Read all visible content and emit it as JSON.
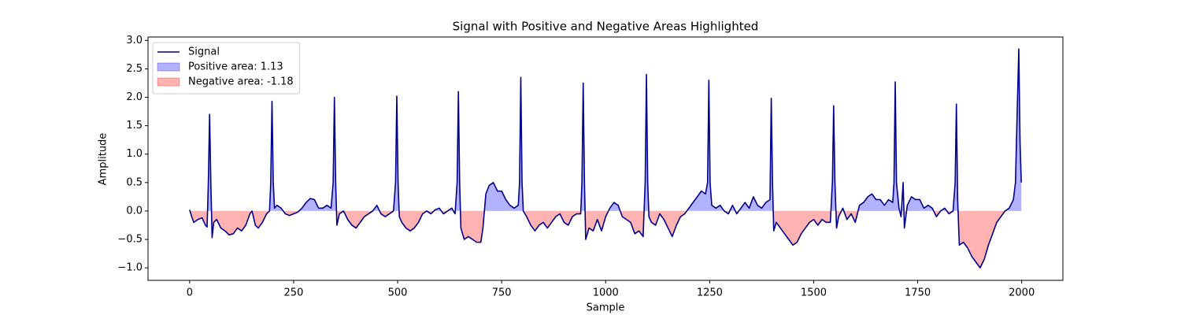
{
  "chart_data": {
    "type": "line",
    "title": "Signal with Positive and Negative Areas Highlighted",
    "x_label": "Sample",
    "y_label": "Amplitude",
    "x": [
      0,
      5,
      10,
      20,
      30,
      38,
      42,
      45,
      48,
      51,
      54,
      58,
      65,
      75,
      85,
      95,
      105,
      115,
      125,
      135,
      145,
      150,
      158,
      165,
      175,
      185,
      192,
      195,
      198,
      201,
      204,
      210,
      220,
      230,
      240,
      250,
      260,
      270,
      280,
      290,
      300,
      310,
      320,
      330,
      340,
      345,
      348,
      351,
      354,
      360,
      370,
      380,
      390,
      400,
      410,
      420,
      430,
      440,
      450,
      460,
      470,
      480,
      490,
      495,
      498,
      501,
      504,
      510,
      520,
      530,
      540,
      550,
      560,
      570,
      580,
      590,
      600,
      610,
      620,
      630,
      638,
      643,
      646,
      649,
      652,
      660,
      670,
      680,
      690,
      700,
      705,
      712,
      720,
      730,
      740,
      750,
      760,
      770,
      780,
      790,
      793,
      796,
      799,
      802,
      810,
      820,
      830,
      840,
      850,
      860,
      870,
      880,
      890,
      900,
      910,
      920,
      930,
      940,
      943,
      946,
      949,
      952,
      960,
      970,
      980,
      990,
      1000,
      1010,
      1020,
      1030,
      1040,
      1050,
      1060,
      1070,
      1080,
      1090,
      1095,
      1098,
      1101,
      1104,
      1110,
      1120,
      1130,
      1140,
      1150,
      1160,
      1170,
      1180,
      1190,
      1200,
      1210,
      1220,
      1230,
      1240,
      1245,
      1248,
      1251,
      1255,
      1265,
      1275,
      1285,
      1295,
      1305,
      1315,
      1325,
      1335,
      1345,
      1355,
      1365,
      1375,
      1385,
      1395,
      1398,
      1401,
      1404,
      1410,
      1420,
      1430,
      1440,
      1450,
      1460,
      1470,
      1480,
      1490,
      1500,
      1510,
      1520,
      1530,
      1540,
      1545,
      1548,
      1551,
      1555,
      1560,
      1570,
      1580,
      1590,
      1600,
      1610,
      1620,
      1630,
      1640,
      1650,
      1660,
      1670,
      1680,
      1690,
      1693,
      1696,
      1699,
      1705,
      1710,
      1715,
      1718,
      1725,
      1735,
      1745,
      1755,
      1765,
      1775,
      1785,
      1795,
      1805,
      1815,
      1825,
      1835,
      1840,
      1843,
      1846,
      1850,
      1860,
      1870,
      1880,
      1890,
      1900,
      1910,
      1920,
      1930,
      1940,
      1950,
      1960,
      1970,
      1980,
      1985,
      1990,
      1993,
      1996,
      1999
    ],
    "series": [
      {
        "name": "Signal",
        "color": "#00008b",
        "values": [
          0.02,
          -0.1,
          -0.2,
          -0.15,
          -0.12,
          -0.25,
          -0.28,
          0.5,
          1.7,
          0.5,
          -0.47,
          -0.2,
          -0.15,
          -0.3,
          -0.35,
          -0.42,
          -0.4,
          -0.3,
          -0.35,
          -0.25,
          -0.05,
          0,
          -0.25,
          -0.3,
          -0.2,
          -0.05,
          0.0,
          0.5,
          1.93,
          0.5,
          0.05,
          0.1,
          0.05,
          -0.05,
          -0.08,
          -0.05,
          -0.02,
          0.05,
          0.15,
          0.22,
          0.2,
          0.05,
          0.05,
          0.1,
          0.05,
          0.5,
          2.0,
          0.5,
          -0.25,
          -0.05,
          0,
          -0.15,
          -0.25,
          -0.3,
          -0.2,
          -0.1,
          -0.05,
          0,
          0.1,
          -0.05,
          -0.1,
          -0.05,
          0,
          0.5,
          2.02,
          0.5,
          -0.1,
          -0.2,
          -0.3,
          -0.35,
          -0.3,
          -0.2,
          -0.05,
          0.0,
          -0.05,
          0.02,
          0.05,
          -0.05,
          0,
          0.05,
          -0.05,
          0.5,
          2.1,
          0.5,
          -0.3,
          -0.5,
          -0.45,
          -0.5,
          -0.55,
          -0.55,
          -0.3,
          0.3,
          0.45,
          0.5,
          0.35,
          0.35,
          0.2,
          0.1,
          0.05,
          0.1,
          0.5,
          2.35,
          0.5,
          0.0,
          -0.1,
          -0.25,
          -0.35,
          -0.25,
          -0.2,
          -0.3,
          -0.2,
          -0.1,
          -0.05,
          -0.2,
          -0.25,
          -0.1,
          -0.05,
          -0.05,
          0.5,
          2.25,
          0.5,
          -0.5,
          -0.3,
          -0.35,
          -0.15,
          -0.35,
          -0.1,
          0.05,
          0.15,
          0.1,
          -0.1,
          -0.15,
          -0.2,
          -0.4,
          -0.35,
          -0.45,
          0.5,
          2.4,
          0.5,
          -0.1,
          -0.2,
          -0.25,
          -0.05,
          -0.15,
          -0.3,
          -0.45,
          -0.25,
          -0.1,
          -0.05,
          0.05,
          0.15,
          0.25,
          0.35,
          0.3,
          0.5,
          2.3,
          0.5,
          0.1,
          0.05,
          0.1,
          0.0,
          -0.05,
          0.1,
          -0.05,
          0.05,
          0.15,
          0.05,
          0.25,
          0.1,
          0.05,
          0.15,
          0.2,
          1.98,
          0.5,
          -0.35,
          -0.2,
          -0.3,
          -0.4,
          -0.5,
          -0.6,
          -0.55,
          -0.4,
          -0.3,
          -0.2,
          -0.15,
          -0.25,
          -0.15,
          -0.2,
          -0.2,
          0.5,
          1.85,
          0.5,
          -0.3,
          -0.1,
          0.05,
          -0.15,
          -0.05,
          -0.2,
          0.1,
          0.15,
          0.25,
          0.3,
          0.2,
          0.2,
          0.1,
          0.2,
          0.15,
          0.5,
          2.27,
          0.5,
          0.05,
          -0.1,
          0.5,
          -0.3,
          0.1,
          0.25,
          0.2,
          0.2,
          0.05,
          0.1,
          0.05,
          -0.1,
          0.0,
          0.05,
          -0.05,
          0.0,
          0.5,
          1.88,
          0.2,
          -0.6,
          -0.55,
          -0.65,
          -0.8,
          -0.9,
          -1.0,
          -0.85,
          -0.6,
          -0.4,
          -0.2,
          -0.1,
          0.0,
          0.05,
          0.2,
          0.5,
          2.0,
          2.85,
          1.2,
          0.5
        ]
      }
    ],
    "fills": [
      {
        "name": "Positive area: 1.13",
        "color": "#0000ff",
        "alpha": 0.3,
        "where": "positive"
      },
      {
        "name": "Negative area: -1.18",
        "color": "#ff0000",
        "alpha": 0.3,
        "where": "negative"
      }
    ],
    "xlim": [
      -100,
      2099
    ],
    "ylim": [
      -1.22,
      3.06
    ],
    "xticks": [
      0,
      250,
      500,
      750,
      1000,
      1250,
      1500,
      1750,
      2000
    ],
    "yticks": [
      {
        "value": -1,
        "label": "−1.0"
      },
      {
        "value": -0.5,
        "label": "−0.5"
      },
      {
        "value": 0,
        "label": "0.0"
      },
      0.5,
      {
        "value": 1,
        "label": "1.0"
      },
      1.5,
      {
        "value": 2,
        "label": "2.0"
      },
      2.5,
      {
        "value": 3,
        "label": "3.0"
      }
    ],
    "legend": "upper left"
  }
}
